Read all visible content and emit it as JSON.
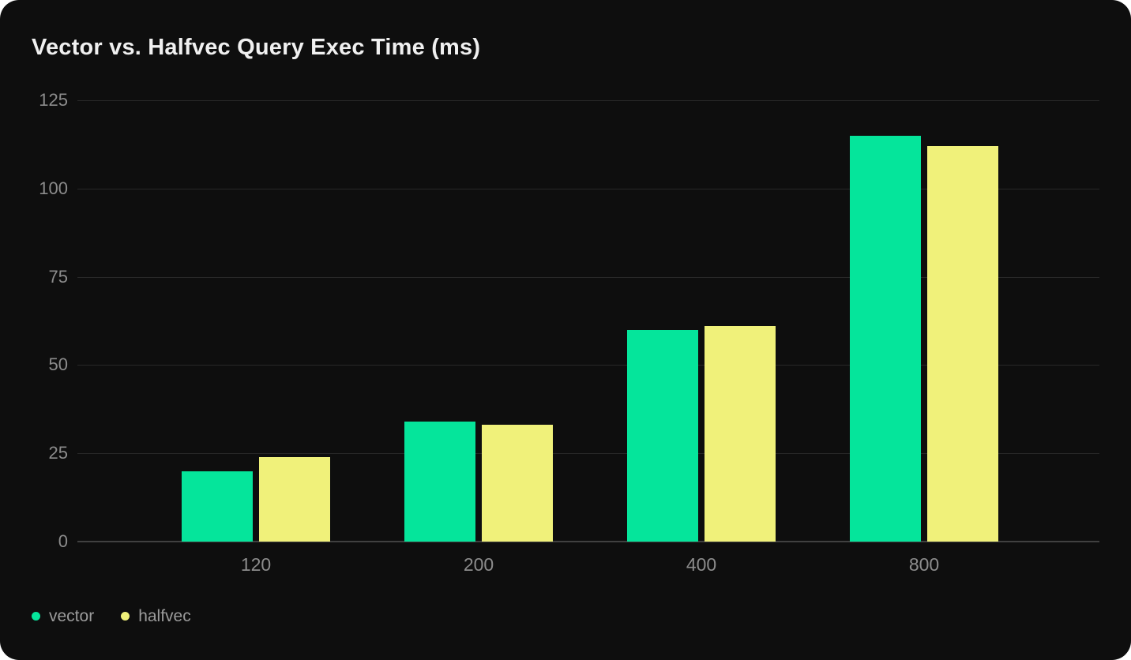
{
  "chart_data": {
    "type": "bar",
    "title": "Vector vs. Halfvec Query Exec Time (ms)",
    "categories": [
      "120",
      "200",
      "400",
      "800"
    ],
    "series": [
      {
        "name": "vector",
        "color": "#05e59b",
        "values": [
          20,
          34,
          60,
          115
        ]
      },
      {
        "name": "halfvec",
        "color": "#f0f17a",
        "values": [
          24,
          33,
          61,
          112
        ]
      }
    ],
    "y_ticks": [
      0,
      25,
      50,
      75,
      100,
      125
    ],
    "ylim": [
      0,
      125
    ],
    "xlabel": "",
    "ylabel": "",
    "grid": "horizontal",
    "legend_position": "bottom-left",
    "background_color": "#0e0e0e",
    "grid_color": "#282828",
    "axis_line_color": "#404040",
    "tick_label_color": "#8c8c8c",
    "title_color": "#f0f0f0",
    "legend_label_color": "#9b9b9b"
  }
}
